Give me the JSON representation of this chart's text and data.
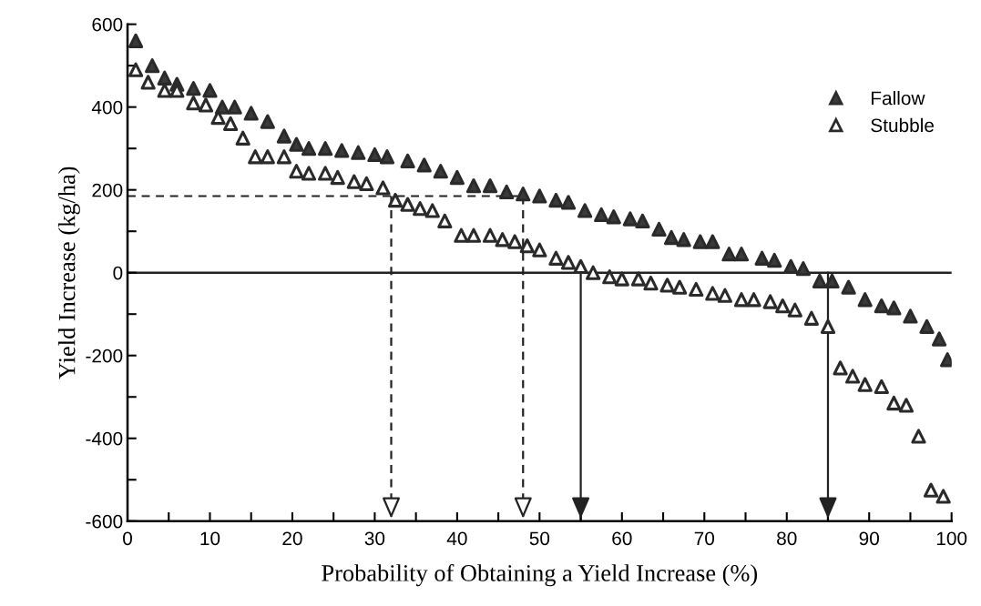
{
  "chart_data": {
    "type": "scatter",
    "xlabel": "Probability of Obtaining a Yield Increase (%)",
    "ylabel": "Yield Increase (kg/ha)",
    "xlim": [
      0,
      100
    ],
    "ylim": [
      -600,
      600
    ],
    "xticks": [
      0,
      {
        "value": 5,
        "label": null
      },
      10,
      {
        "value": 15,
        "label": null
      },
      20,
      {
        "value": 25,
        "label": null
      },
      30,
      {
        "value": 35,
        "label": null
      },
      40,
      {
        "value": 45,
        "label": null
      },
      50,
      {
        "value": 55,
        "label": null
      },
      60,
      {
        "value": 65,
        "label": null
      },
      70,
      {
        "value": 75,
        "label": null
      },
      80,
      {
        "value": 85,
        "label": null
      },
      90,
      {
        "value": 95,
        "label": null
      },
      100
    ],
    "yticks": [
      -600,
      {
        "value": -500,
        "label": null
      },
      -400,
      {
        "value": -300,
        "label": null
      },
      -200,
      {
        "value": -100,
        "label": null
      },
      0,
      {
        "value": 100,
        "label": null
      },
      200,
      {
        "value": 300,
        "label": null
      },
      400,
      {
        "value": 500,
        "label": null
      },
      600
    ],
    "grid": false,
    "legend": "top right",
    "marker": "triangle",
    "ref_lines": [
      {
        "axis": "y",
        "value": 0,
        "color": "#222222",
        "line_style": "solid"
      },
      {
        "axis": "y",
        "value": 185,
        "color": "#222222",
        "line_style": "dashed"
      },
      {
        "axis": "x",
        "value": 32,
        "color": "#222222",
        "line_style": "dashed"
      },
      {
        "axis": "x",
        "value": 48,
        "color": "#222222",
        "line_style": "dashed"
      },
      {
        "axis": "x",
        "value": 55,
        "color": "#222222",
        "line_style": "solid"
      },
      {
        "axis": "x",
        "value": 85,
        "color": "#222222",
        "line_style": "solid"
      }
    ],
    "series": [
      {
        "name": "Fallow",
        "color": "#3a3a3a",
        "x": [
          1,
          3,
          4.5,
          6,
          8,
          10,
          11.5,
          13,
          15,
          17,
          19,
          20.5,
          22,
          24,
          26,
          28,
          30,
          31.5,
          34,
          36,
          38,
          40,
          42,
          44,
          46,
          48,
          50,
          52,
          53.5,
          55.5,
          57.5,
          59,
          61,
          62.5,
          64.5,
          66,
          67.5,
          69.5,
          71,
          73,
          74.5,
          77,
          78.5,
          80.5,
          82,
          84,
          85.5,
          87.5,
          89.5,
          91.5,
          93,
          95,
          97,
          98.5,
          99.5
        ],
        "values": [
          560,
          500,
          470,
          455,
          445,
          440,
          400,
          400,
          385,
          365,
          330,
          310,
          300,
          300,
          295,
          290,
          285,
          280,
          270,
          260,
          245,
          230,
          210,
          210,
          195,
          190,
          185,
          175,
          170,
          150,
          140,
          135,
          130,
          125,
          105,
          85,
          80,
          75,
          75,
          45,
          45,
          35,
          30,
          15,
          10,
          -20,
          -20,
          -35,
          -65,
          -80,
          -85,
          -105,
          -130,
          -160,
          -210
        ]
      },
      {
        "name": "Stubble",
        "color": "#ffffff",
        "x": [
          1,
          2.5,
          4.5,
          6,
          8,
          9.5,
          11,
          12.5,
          14,
          15.5,
          17,
          19,
          20.5,
          22,
          24,
          25.5,
          27.5,
          29,
          31,
          32.5,
          34,
          35.5,
          37,
          38.5,
          40.5,
          42,
          44,
          45.5,
          47,
          48.5,
          50,
          52,
          53.5,
          55,
          56.5,
          58.5,
          60,
          62,
          63.5,
          65.5,
          67,
          69,
          71,
          72.5,
          74.5,
          76,
          78,
          79.5,
          81,
          83,
          85,
          86.5,
          88,
          89.5,
          91.5,
          93,
          94.5,
          96,
          97.5,
          99
        ],
        "values": [
          490,
          460,
          440,
          440,
          410,
          405,
          375,
          360,
          325,
          280,
          280,
          280,
          245,
          240,
          240,
          230,
          220,
          215,
          205,
          175,
          165,
          155,
          150,
          125,
          90,
          90,
          90,
          80,
          75,
          65,
          55,
          35,
          25,
          15,
          0,
          -10,
          -15,
          -15,
          -25,
          -30,
          -35,
          -40,
          -50,
          -55,
          -65,
          -65,
          -70,
          -80,
          -90,
          -110,
          -130,
          -230,
          -250,
          -270,
          -275,
          -315,
          -320,
          -395,
          -525,
          -540
        ]
      }
    ]
  }
}
